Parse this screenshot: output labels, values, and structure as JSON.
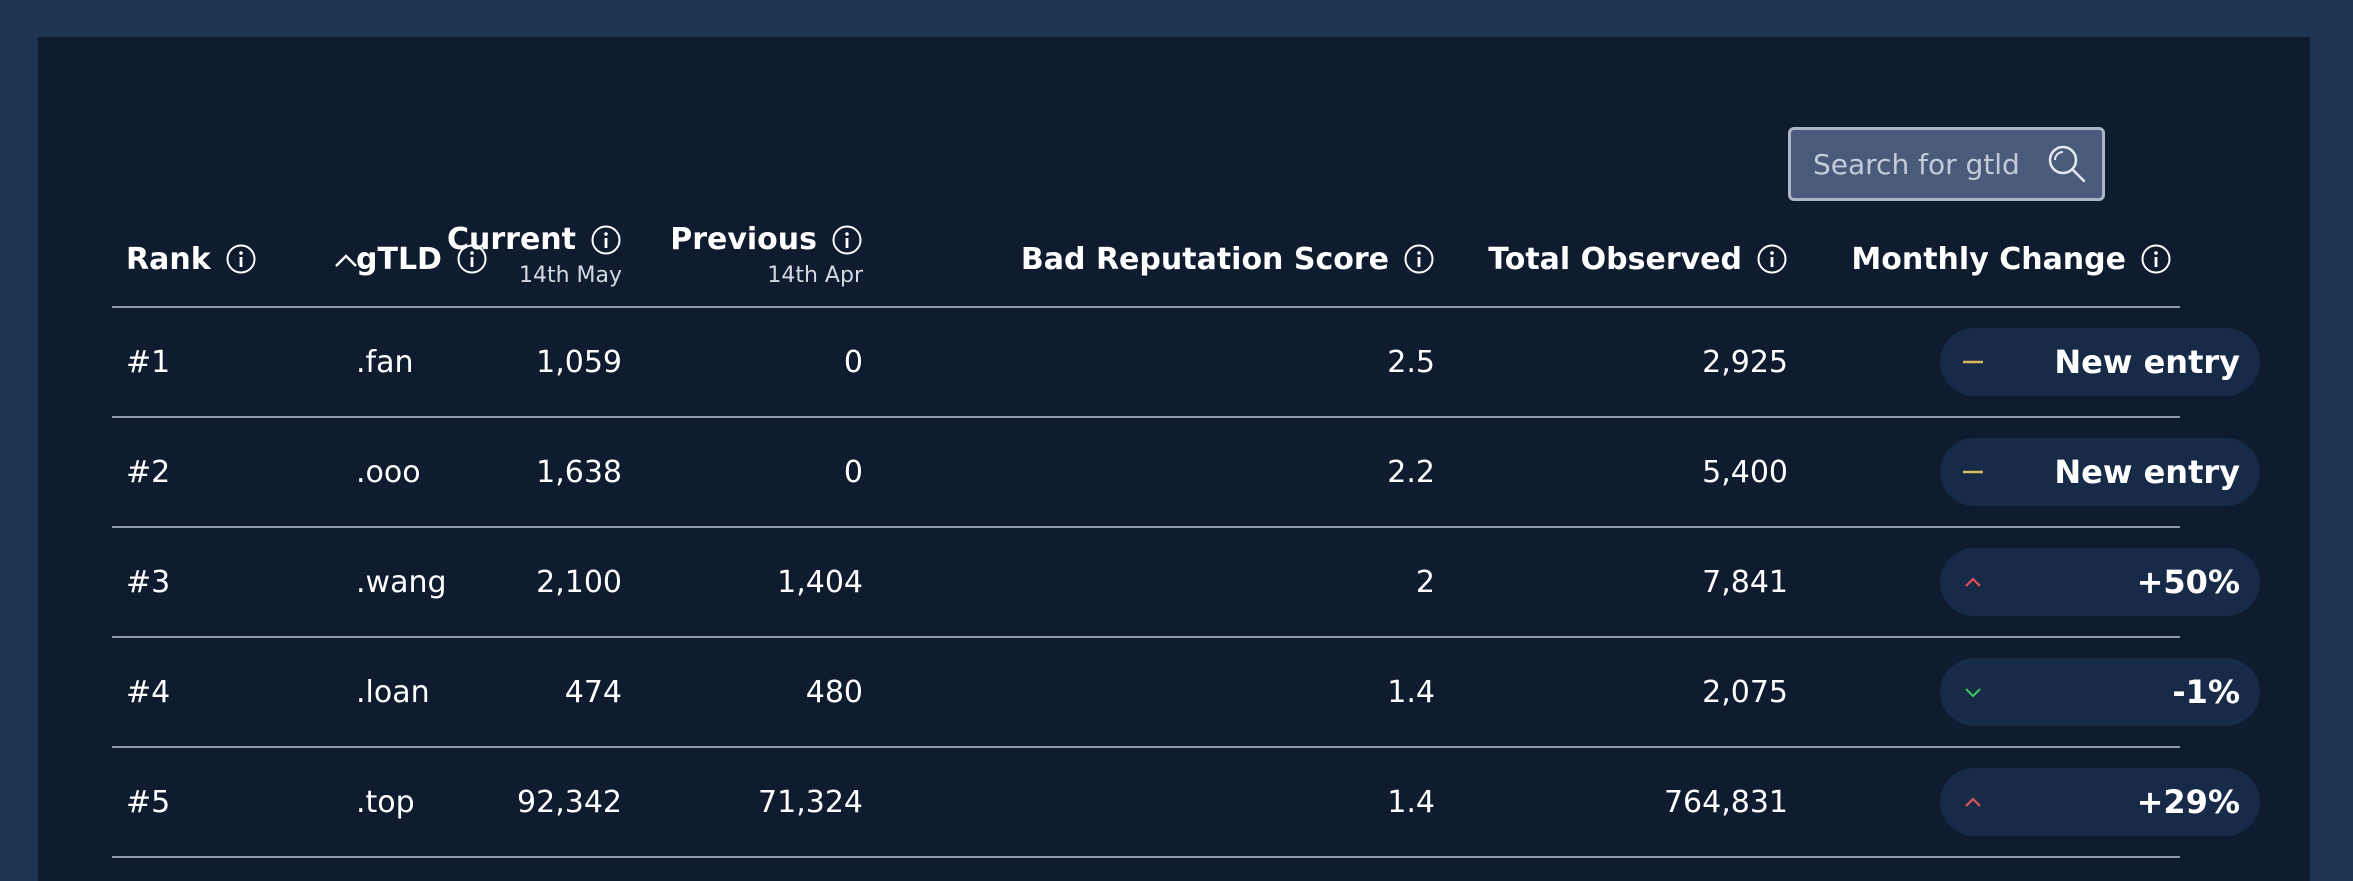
{
  "search": {
    "placeholder": "Search for gtld"
  },
  "columns": {
    "rank": "Rank",
    "gtld": "gTLD",
    "current": "Current",
    "current_date": "14th May",
    "previous": "Previous",
    "previous_date": "14th Apr",
    "bad_reputation": "Bad Reputation Score",
    "total_observed": "Total Observed",
    "monthly_change": "Monthly Change"
  },
  "rows": [
    {
      "rank": "#1",
      "gtld": ".fan",
      "current": "1,059",
      "previous": "0",
      "score": "2.5",
      "total": "2,925",
      "change": "New entry",
      "trend": "new"
    },
    {
      "rank": "#2",
      "gtld": ".ooo",
      "current": "1,638",
      "previous": "0",
      "score": "2.2",
      "total": "5,400",
      "change": "New entry",
      "trend": "new"
    },
    {
      "rank": "#3",
      "gtld": ".wang",
      "current": "2,100",
      "previous": "1,404",
      "score": "2",
      "total": "7,841",
      "change": "+50%",
      "trend": "up"
    },
    {
      "rank": "#4",
      "gtld": ".loan",
      "current": "474",
      "previous": "480",
      "score": "1.4",
      "total": "2,075",
      "change": "-1%",
      "trend": "down"
    },
    {
      "rank": "#5",
      "gtld": ".top",
      "current": "92,342",
      "previous": "71,324",
      "score": "1.4",
      "total": "764,831",
      "change": "+29%",
      "trend": "up"
    }
  ],
  "colors": {
    "up": "#e0525a",
    "down": "#3fbf62",
    "new": "#d9b85a"
  }
}
